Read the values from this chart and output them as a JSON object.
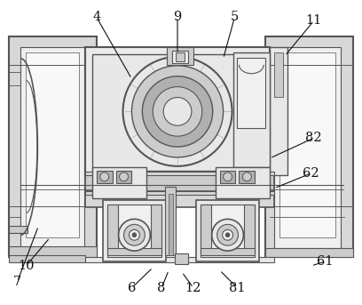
{
  "bg_color": "#ffffff",
  "line_color": "#555555",
  "figsize": [
    4.08,
    3.43
  ],
  "dpi": 100,
  "leaders": [
    [
      "7",
      18,
      318,
      42,
      255
    ],
    [
      "4",
      108,
      18,
      148,
      88
    ],
    [
      "9",
      200,
      18,
      200,
      60
    ],
    [
      "5",
      265,
      18,
      252,
      65
    ],
    [
      "11",
      355,
      22,
      322,
      62
    ],
    [
      "82",
      355,
      155,
      305,
      178
    ],
    [
      "62",
      352,
      195,
      310,
      212
    ],
    [
      "10",
      28,
      300,
      55,
      268
    ],
    [
      "6",
      148,
      325,
      172,
      302
    ],
    [
      "8",
      182,
      325,
      190,
      305
    ],
    [
      "12",
      218,
      325,
      205,
      307
    ],
    [
      "81",
      268,
      325,
      248,
      305
    ],
    [
      "61",
      368,
      295,
      352,
      300
    ]
  ]
}
